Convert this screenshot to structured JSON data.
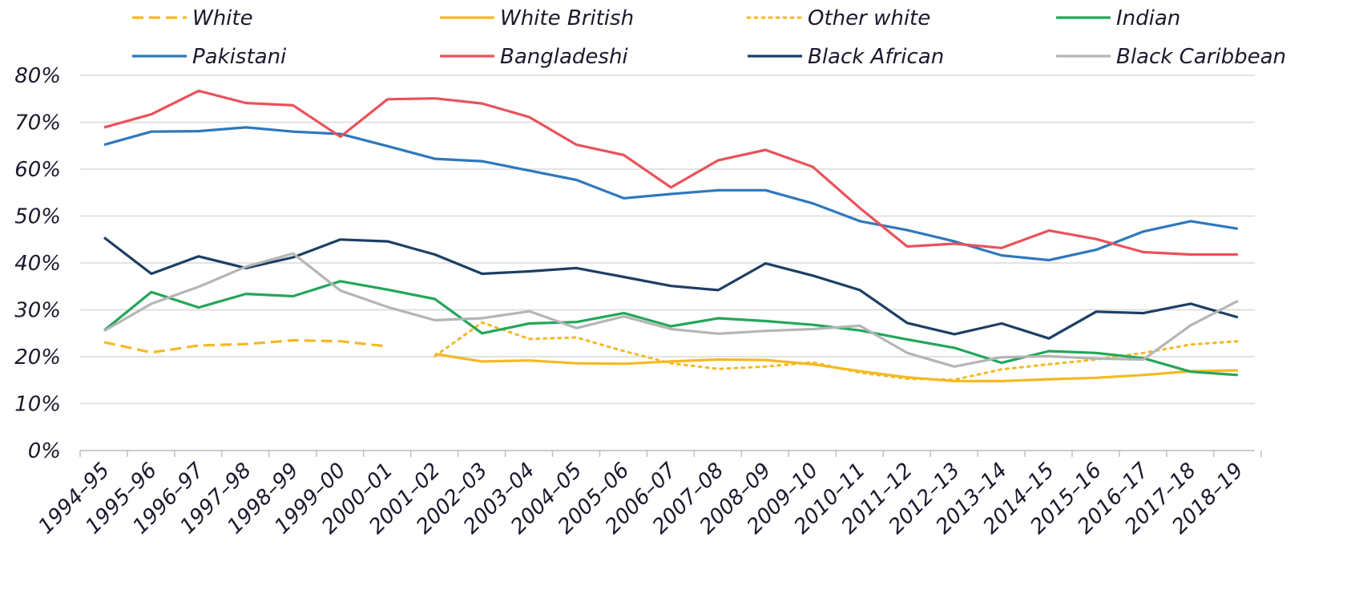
{
  "chart_data": {
    "type": "line",
    "title": "",
    "xlabel": "",
    "ylabel": "",
    "y_unit": "%",
    "ylim": [
      0,
      80
    ],
    "y_ticks": [
      0,
      10,
      20,
      30,
      40,
      50,
      60,
      70,
      80
    ],
    "y_tick_labels": [
      "0%",
      "10%",
      "20%",
      "30%",
      "40%",
      "50%",
      "60%",
      "70%",
      "80%"
    ],
    "grid": "horizontal",
    "legend_position": "top",
    "categories": [
      "1994–95",
      "1995–96",
      "1996–97",
      "1997–98",
      "1998–99",
      "1999–00",
      "2000–01",
      "2001–02",
      "2002–03",
      "2003–04",
      "2004–05",
      "2005–06",
      "2006–07",
      "2007–08",
      "2008–09",
      "2009–10",
      "2010–11",
      "2011–12",
      "2012–13",
      "2013–14",
      "2014–15",
      "2015–16",
      "2016–17",
      "2017–18",
      "2018–19"
    ],
    "series": [
      {
        "name": "White",
        "color": "#f5b922",
        "dash": "dashed",
        "values": [
          23.1,
          20.9,
          22.4,
          22.7,
          23.5,
          23.3,
          22.2,
          null,
          null,
          null,
          null,
          null,
          null,
          null,
          null,
          null,
          null,
          null,
          null,
          null,
          null,
          null,
          null,
          null,
          null
        ]
      },
      {
        "name": "White British",
        "color": "#f5b922",
        "dash": "solid",
        "values": [
          null,
          null,
          null,
          null,
          null,
          null,
          null,
          20.6,
          19.0,
          19.2,
          18.6,
          18.5,
          19.0,
          19.4,
          19.3,
          18.4,
          16.9,
          15.6,
          14.8,
          14.8,
          15.2,
          15.5,
          16.1,
          16.9,
          17.1
        ]
      },
      {
        "name": "Other white",
        "color": "#f5b922",
        "dash": "dotted",
        "values": [
          null,
          null,
          null,
          null,
          null,
          null,
          null,
          20.1,
          27.3,
          23.8,
          24.1,
          21.2,
          18.6,
          17.4,
          17.9,
          18.8,
          16.6,
          15.3,
          15.1,
          17.3,
          18.4,
          19.4,
          20.8,
          22.6,
          23.3
        ]
      },
      {
        "name": "Indian",
        "color": "#23a65a",
        "dash": "solid",
        "values": [
          25.6,
          33.8,
          30.5,
          33.4,
          32.9,
          36.1,
          34.3,
          32.3,
          25.0,
          27.1,
          27.4,
          29.3,
          26.5,
          28.2,
          27.6,
          26.8,
          25.6,
          23.7,
          21.9,
          18.7,
          21.2,
          20.8,
          19.7,
          16.8,
          16.1
        ]
      },
      {
        "name": "Pakistani",
        "color": "#2f78bc",
        "dash": "solid",
        "values": [
          65.2,
          68.0,
          68.1,
          68.9,
          68.0,
          67.5,
          64.9,
          62.2,
          61.7,
          59.7,
          57.7,
          53.8,
          54.7,
          55.5,
          55.5,
          52.7,
          48.9,
          47.0,
          44.6,
          41.6,
          40.6,
          42.8,
          46.7,
          48.9,
          47.3
        ]
      },
      {
        "name": "Bangladeshi",
        "color": "#e9525b",
        "dash": "solid",
        "values": [
          68.9,
          71.7,
          76.7,
          74.1,
          73.6,
          66.9,
          74.9,
          75.1,
          74.0,
          71.1,
          65.2,
          63.0,
          56.1,
          61.9,
          64.1,
          60.5,
          51.7,
          43.5,
          44.1,
          43.2,
          46.9,
          45.1,
          42.3,
          41.8,
          41.8
        ]
      },
      {
        "name": "Black African",
        "color": "#1c3f63",
        "dash": "solid",
        "values": [
          45.4,
          37.7,
          41.4,
          38.9,
          41.2,
          45.0,
          44.6,
          41.8,
          37.7,
          38.2,
          38.9,
          37.0,
          35.1,
          34.2,
          39.9,
          37.3,
          34.2,
          27.2,
          24.8,
          27.1,
          23.9,
          29.6,
          29.3,
          31.3,
          28.4
        ]
      },
      {
        "name": "Black Caribbean",
        "color": "#b4b5b5",
        "dash": "solid",
        "values": [
          25.5,
          31.3,
          34.9,
          39.2,
          42.0,
          34.1,
          30.6,
          27.8,
          28.2,
          29.7,
          26.1,
          28.6,
          25.9,
          24.9,
          25.5,
          25.9,
          26.6,
          20.8,
          17.9,
          19.9,
          20.1,
          19.6,
          19.4,
          26.7,
          31.9
        ]
      }
    ]
  }
}
